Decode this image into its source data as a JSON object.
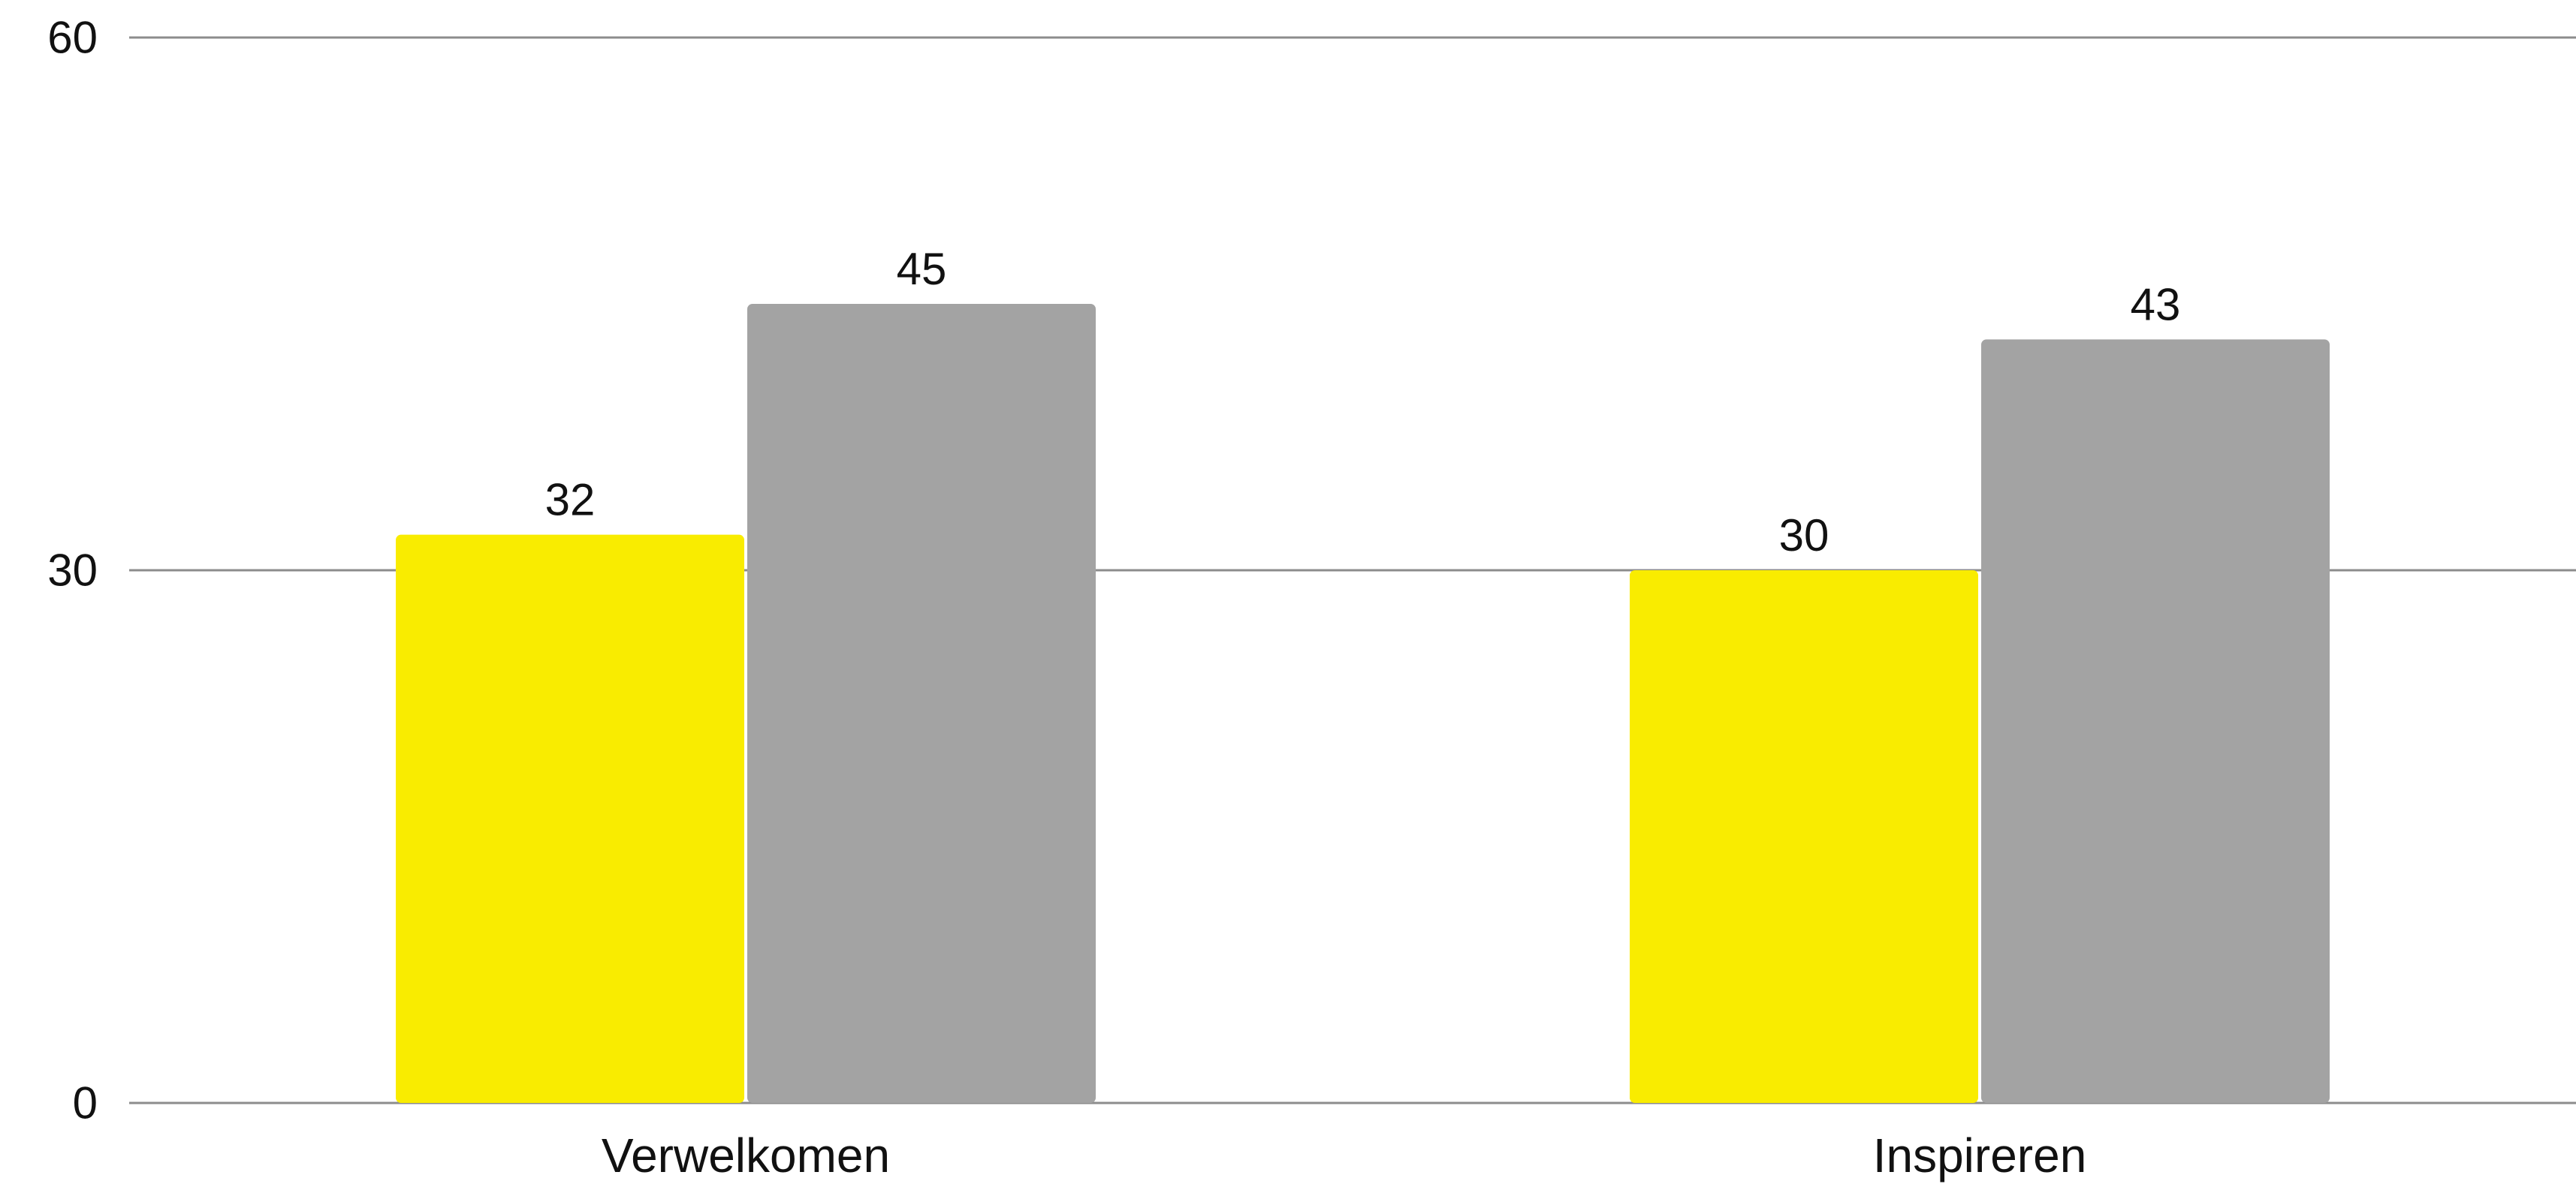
{
  "chart_data": {
    "type": "bar",
    "title": "",
    "xlabel": "",
    "ylabel": "",
    "categories": [
      "Verwelkomen",
      "Inspireren"
    ],
    "series": [
      {
        "values": [
          32,
          30
        ],
        "color": "#f9ec00"
      },
      {
        "values": [
          45,
          43
        ],
        "color": "#a3a3a3"
      }
    ],
    "ylim": [
      0,
      60
    ],
    "yticks": [
      0,
      30,
      60
    ],
    "ytick_labels": [
      "0",
      "30",
      "60"
    ],
    "data_labels": true,
    "grid": true,
    "legend": "none"
  }
}
